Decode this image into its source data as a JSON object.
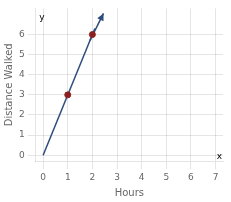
{
  "chart_data": {
    "type": "scatter",
    "xlabel": "Hours",
    "ylabel": "Distance Walked",
    "series": [
      {
        "type": "line",
        "color": "#2e4d7b",
        "x": [
          0,
          2.1
        ],
        "values": [
          0,
          6.3
        ]
      },
      {
        "type": "arrow",
        "color": "#2e4d7b",
        "x": [
          1.9,
          2.45
        ],
        "values": [
          5.7,
          7.05
        ]
      },
      {
        "type": "scatter",
        "color": "#8b2020",
        "x": [
          1,
          2
        ],
        "values": [
          3,
          6
        ]
      }
    ],
    "xlim": [
      -0.3,
      7.3
    ],
    "ylim": [
      -0.3,
      7.3
    ],
    "xticks": [
      0,
      1,
      2,
      3,
      4,
      5,
      6,
      7
    ],
    "yticks": [
      0,
      1,
      2,
      3,
      4,
      5,
      6
    ],
    "grid": true,
    "annotations": [
      {
        "text": "x",
        "x": 7.15,
        "y": -0.05
      },
      {
        "text": "y",
        "x": -0.05,
        "y": 6.85
      }
    ]
  }
}
